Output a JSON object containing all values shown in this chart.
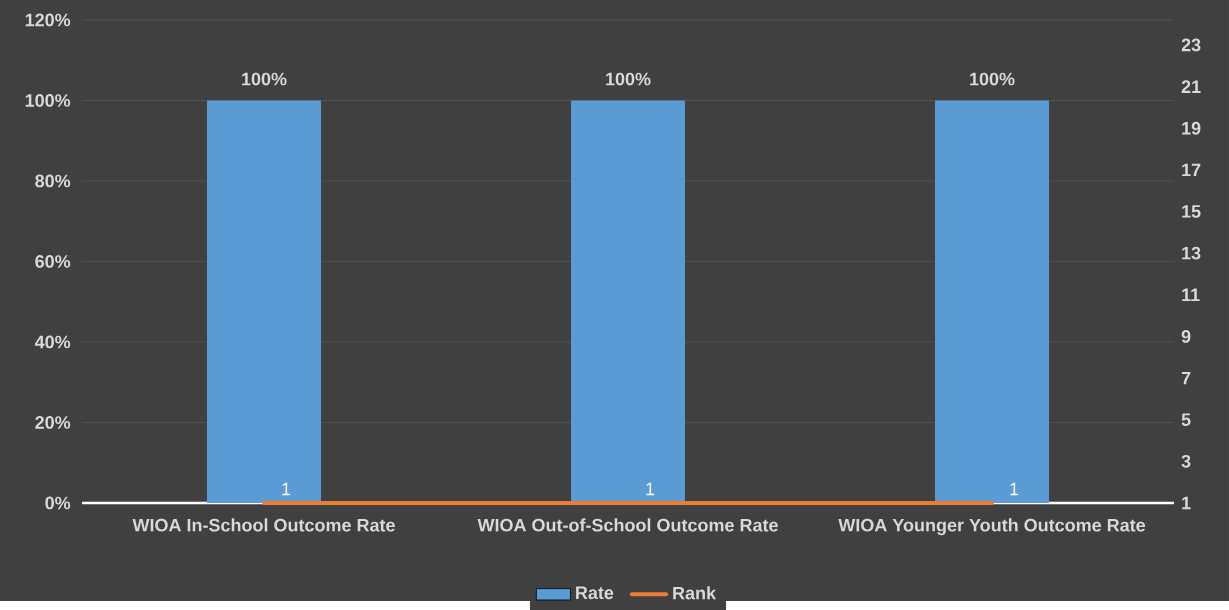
{
  "chart_data": {
    "type": "bar",
    "categories": [
      "WIOA In-School Outcome Rate",
      "WIOA Out-of-School Outcome Rate",
      "WIOA Younger Youth Outcome Rate"
    ],
    "series": [
      {
        "name": "Rate",
        "color": "#5b9bd5",
        "values": [
          100,
          100,
          100
        ],
        "value_labels": [
          "100%",
          "100%",
          "100%"
        ]
      },
      {
        "name": "Rank",
        "type": "line",
        "axis": "y2",
        "color": "#ed7d31",
        "values": [
          1,
          1,
          1
        ],
        "value_labels": [
          "1",
          "1",
          "1"
        ]
      }
    ],
    "ylim": [
      0,
      120
    ],
    "yticks": [
      {
        "value": 0,
        "label": "0%"
      },
      {
        "value": 20,
        "label": "20%"
      },
      {
        "value": 40,
        "label": "40%"
      },
      {
        "value": 60,
        "label": "60%"
      },
      {
        "value": 80,
        "label": "80%"
      },
      {
        "value": 100,
        "label": "100%"
      },
      {
        "value": 120,
        "label": "120%"
      }
    ],
    "y2lim": [
      1,
      24.2
    ],
    "y2ticks": [
      1,
      3,
      5,
      7,
      9,
      11,
      13,
      15,
      17,
      19,
      21,
      23
    ],
    "grid": "y",
    "legend": "bottom"
  }
}
